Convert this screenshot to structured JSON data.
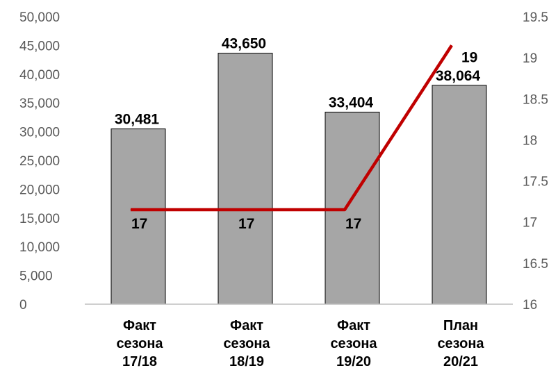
{
  "chart_data": {
    "type": "bar",
    "categories": [
      [
        "Факт",
        "сезона",
        "17/18"
      ],
      [
        "Факт",
        "сезона",
        "18/19"
      ],
      [
        "Факт",
        "сезона",
        "19/20"
      ],
      [
        "План",
        "сезона",
        "20/21"
      ]
    ],
    "series": [
      {
        "type": "bar",
        "axis": "left",
        "values": [
          30481,
          43650,
          33404,
          38064
        ],
        "labels": [
          "30,481",
          "43,650",
          "33,404",
          "38,064"
        ]
      },
      {
        "type": "line",
        "axis": "right",
        "values": [
          17.15,
          17.15,
          17.15,
          19.15
        ],
        "labels": [
          "17",
          "17",
          "17",
          "19"
        ]
      }
    ],
    "y_left": {
      "ylim": [
        0,
        50000
      ],
      "ticks": [
        "0",
        "5,000",
        "10,000",
        "15,000",
        "20,000",
        "25,000",
        "30,000",
        "35,000",
        "40,000",
        "45,000",
        "50,000"
      ]
    },
    "y_right": {
      "ylim": [
        16,
        19.5
      ],
      "ticks": [
        "16",
        "16.5",
        "17",
        "17.5",
        "18",
        "18.5",
        "19",
        "19.5"
      ]
    },
    "title": "",
    "xlabel": "",
    "ylabel": "",
    "grid": false,
    "legend": "none",
    "colors": {
      "bar_fill": "#a6a6a6",
      "bar_stroke": "#000000",
      "line": "#c00000",
      "tick_text": "#595959",
      "axis": "#bfbfbf"
    }
  }
}
